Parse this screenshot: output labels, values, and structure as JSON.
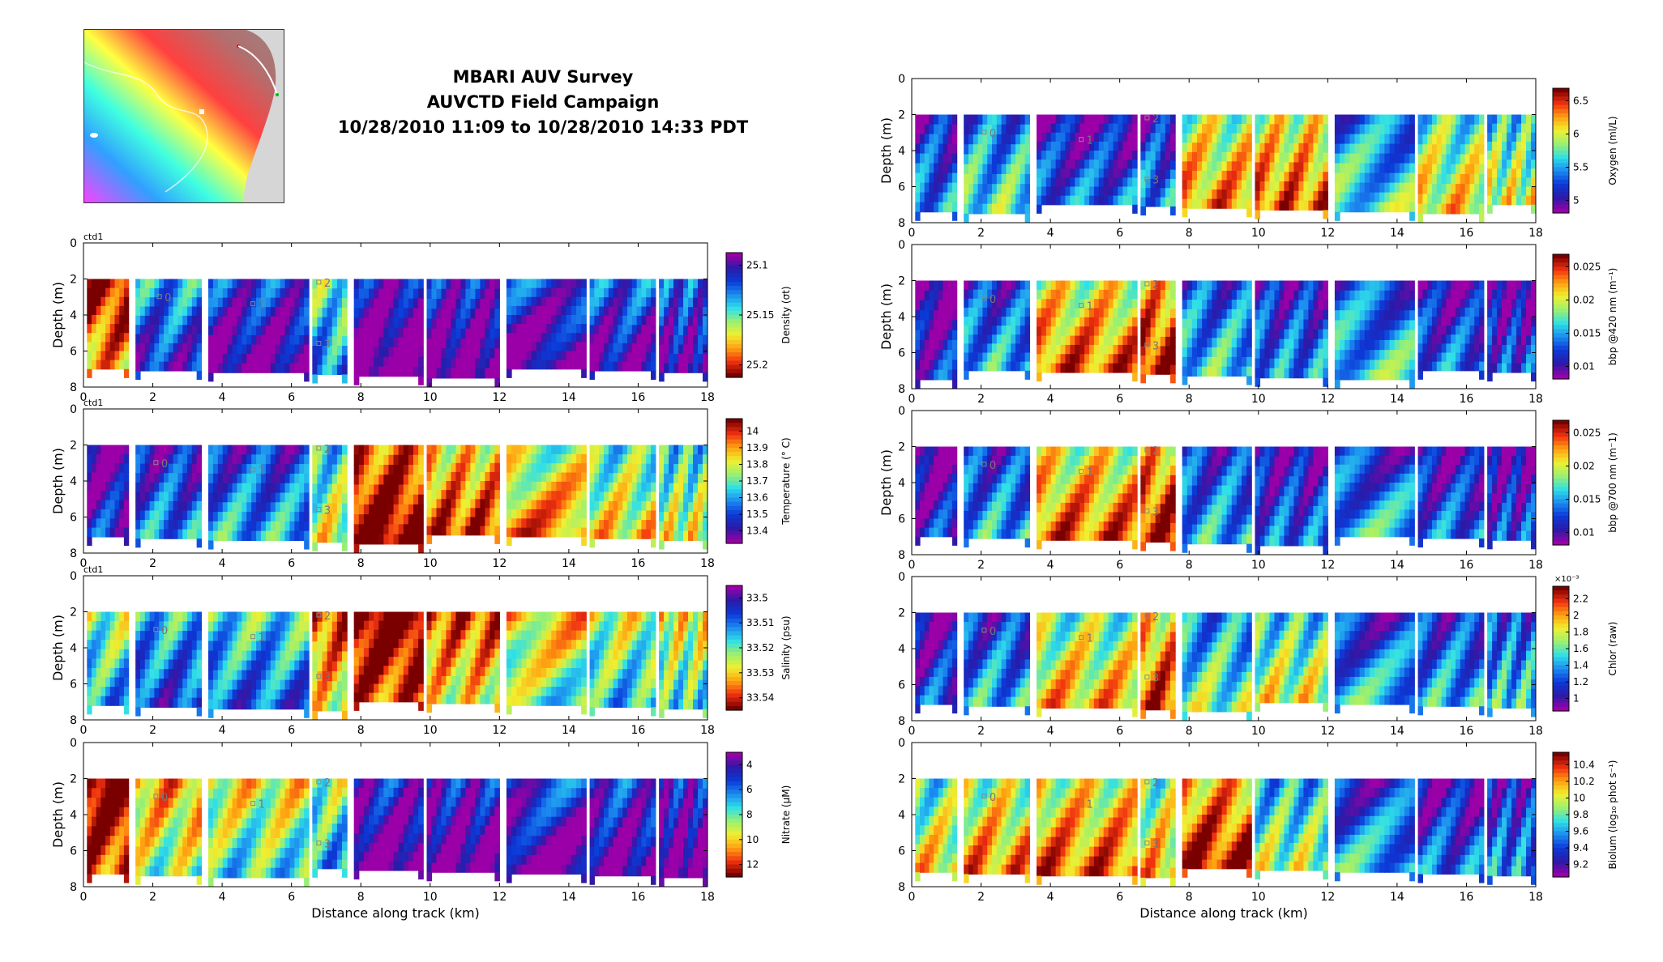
{
  "title": {
    "line1": "MBARI AUV Survey",
    "line2": "AUVCTD Field Campaign",
    "line3": "10/28/2010 11:09 to 10/28/2010 14:33 PDT"
  },
  "colors": {
    "jet": [
      "#00007f",
      "#0000ff",
      "#007fff",
      "#00ffff",
      "#7fff7f",
      "#ffff00",
      "#ff7f00",
      "#ff0000",
      "#7f0000"
    ],
    "purple_jet": [
      "#9b00a8",
      "#2a1aa8",
      "#0b3ad8",
      "#1c8cf0",
      "#2fe0e8",
      "#9cf070",
      "#f0f030",
      "#ffa010",
      "#f03010",
      "#7a0000"
    ],
    "background_panel": "#ffffff",
    "inset_land": "#d8d8d8",
    "inset_sea": "#c8a0a0"
  },
  "chart_data": [
    {
      "id": "density",
      "type": "heatmap",
      "col": "left",
      "row": 0,
      "ctd_label": "ctd1",
      "colorbar_label": "Density (σt)",
      "xlabel": "",
      "ylabel": "Depth (m)",
      "xlim": [
        0,
        18
      ],
      "ylim": [
        8,
        0
      ],
      "xticks": [
        "0",
        "2",
        "4",
        "6",
        "8",
        "10",
        "12",
        "14",
        "16",
        "18"
      ],
      "yticks": [
        "0",
        "2",
        "4",
        "6",
        "8"
      ],
      "cbar_ticks": [
        "25.1",
        "25.15",
        "25.2"
      ],
      "colormap": "purple_jet",
      "reverse": true,
      "markers": [
        {
          "label": "0",
          "x": 2.2,
          "y": 3.0
        },
        {
          "label": "1",
          "x": 4.9,
          "y": 3.4
        },
        {
          "label": "2",
          "x": 6.8,
          "y": 2.2
        },
        {
          "label": "3",
          "x": 6.8,
          "y": 5.6
        }
      ],
      "values_by_section": [
        0.85,
        0.25,
        0.1,
        0.4,
        0.0,
        0.05,
        0.1,
        0.15,
        0.15,
        0.2
      ]
    },
    {
      "id": "temperature",
      "type": "heatmap",
      "col": "left",
      "row": 1,
      "ctd_label": "ctd1",
      "colorbar_label": "Temperature (° C)",
      "xlabel": "",
      "ylabel": "Depth (m)",
      "xlim": [
        0,
        18
      ],
      "ylim": [
        8,
        0
      ],
      "xticks": [
        "0",
        "2",
        "4",
        "6",
        "8",
        "10",
        "12",
        "14",
        "16",
        "18"
      ],
      "yticks": [
        "0",
        "2",
        "4",
        "6",
        "8"
      ],
      "cbar_ticks": [
        "13.4",
        "13.5",
        "13.6",
        "13.7",
        "13.8",
        "13.9",
        "14"
      ],
      "colormap": "purple_jet",
      "reverse": false,
      "markers": [
        {
          "label": "0",
          "x": 2.1,
          "y": 3.0
        },
        {
          "label": "1",
          "x": 4.9,
          "y": 3.4
        },
        {
          "label": "2",
          "x": 6.8,
          "y": 2.2
        },
        {
          "label": "3",
          "x": 6.8,
          "y": 5.6
        }
      ],
      "values_by_section": [
        0.1,
        0.25,
        0.3,
        0.55,
        0.95,
        0.8,
        0.7,
        0.6,
        0.55,
        0.5
      ]
    },
    {
      "id": "salinity",
      "type": "heatmap",
      "col": "left",
      "row": 2,
      "ctd_label": "ctd1",
      "colorbar_label": "Salinity (psu)",
      "xlabel": "",
      "ylabel": "Depth (m)",
      "xlim": [
        0,
        18
      ],
      "ylim": [
        8,
        0
      ],
      "xticks": [
        "0",
        "2",
        "4",
        "6",
        "8",
        "10",
        "12",
        "14",
        "16",
        "18"
      ],
      "yticks": [
        "0",
        "2",
        "4",
        "6",
        "8"
      ],
      "cbar_ticks": [
        "33.5",
        "33.51",
        "33.52",
        "33.53",
        "33.54"
      ],
      "colormap": "purple_jet",
      "reverse": true,
      "markers": [
        {
          "label": "0",
          "x": 2.1,
          "y": 3.0
        },
        {
          "label": "1",
          "x": 4.9,
          "y": 3.4
        },
        {
          "label": "2",
          "x": 6.8,
          "y": 2.2
        },
        {
          "label": "3",
          "x": 6.8,
          "y": 5.6
        }
      ],
      "values_by_section": [
        0.45,
        0.3,
        0.35,
        0.75,
        0.95,
        0.75,
        0.6,
        0.5,
        0.55,
        0.6
      ]
    },
    {
      "id": "nitrate",
      "type": "heatmap",
      "col": "left",
      "row": 3,
      "ctd_label": "",
      "colorbar_label": "Nitrate (μM)",
      "xlabel": "Distance along track (km)",
      "ylabel": "Depth (m)",
      "xlim": [
        0,
        18
      ],
      "ylim": [
        8,
        0
      ],
      "xticks": [
        "0",
        "2",
        "4",
        "6",
        "8",
        "10",
        "12",
        "14",
        "16",
        "18"
      ],
      "yticks": [
        "0",
        "2",
        "4",
        "6",
        "8"
      ],
      "cbar_ticks": [
        "4",
        "6",
        "8",
        "10",
        "12"
      ],
      "colormap": "purple_jet",
      "reverse": true,
      "markers": [
        {
          "label": "0",
          "x": 2.1,
          "y": 3.0
        },
        {
          "label": "1",
          "x": 4.9,
          "y": 3.4
        },
        {
          "label": "2",
          "x": 6.8,
          "y": 2.2
        },
        {
          "label": "3",
          "x": 6.8,
          "y": 5.6
        }
      ],
      "values_by_section": [
        0.95,
        0.65,
        0.55,
        0.45,
        0.05,
        0.05,
        0.1,
        0.1,
        0.05,
        0.05
      ]
    },
    {
      "id": "oxygen",
      "type": "heatmap",
      "col": "right",
      "row": 0,
      "ctd_label": "",
      "colorbar_label": "Oxygen (ml/L)",
      "xlabel": "",
      "ylabel": "Depth (m)",
      "xlim": [
        0,
        18
      ],
      "ylim": [
        8,
        0
      ],
      "xticks": [
        "0",
        "2",
        "4",
        "6",
        "8",
        "10",
        "12",
        "14",
        "16",
        "18"
      ],
      "yticks": [
        "0",
        "2",
        "4",
        "6",
        "8"
      ],
      "cbar_ticks": [
        "5",
        "5.5",
        "6",
        "6.5"
      ],
      "colormap": "purple_jet",
      "reverse": false,
      "markers": [
        {
          "label": "0",
          "x": 2.1,
          "y": 3.0
        },
        {
          "label": "1",
          "x": 4.9,
          "y": 3.4
        },
        {
          "label": "2",
          "x": 6.8,
          "y": 2.2
        },
        {
          "label": "3",
          "x": 6.8,
          "y": 5.6
        }
      ],
      "values_by_section": [
        0.25,
        0.4,
        0.2,
        0.25,
        0.7,
        0.75,
        0.4,
        0.6,
        0.55,
        0.85
      ]
    },
    {
      "id": "bbp420",
      "type": "heatmap",
      "col": "right",
      "row": 1,
      "ctd_label": "",
      "colorbar_label": "bbp @420 nm (m⁻¹)",
      "xlabel": "",
      "ylabel": "Depth (m)",
      "xlim": [
        0,
        18
      ],
      "ylim": [
        8,
        0
      ],
      "xticks": [
        "0",
        "2",
        "4",
        "6",
        "8",
        "10",
        "12",
        "14",
        "16",
        "18"
      ],
      "yticks": [
        "0",
        "2",
        "4",
        "6",
        "8"
      ],
      "cbar_ticks": [
        "0.01",
        "0.015",
        "0.02",
        "0.025"
      ],
      "colormap": "purple_jet",
      "reverse": false,
      "markers": [
        {
          "label": "0",
          "x": 2.1,
          "y": 3.0
        },
        {
          "label": "1",
          "x": 4.9,
          "y": 3.4
        },
        {
          "label": "2",
          "x": 6.8,
          "y": 2.2
        },
        {
          "label": "3",
          "x": 6.8,
          "y": 5.6
        }
      ],
      "values_by_section": [
        0.1,
        0.3,
        0.75,
        0.85,
        0.35,
        0.25,
        0.35,
        0.2,
        0.15,
        0.1
      ]
    },
    {
      "id": "bbp700",
      "type": "heatmap",
      "col": "right",
      "row": 2,
      "ctd_label": "",
      "colorbar_label": "bbp @700 nm (m⁻1)",
      "xlabel": "",
      "ylabel": "Depth (m)",
      "xlim": [
        0,
        18
      ],
      "ylim": [
        8,
        0
      ],
      "xticks": [
        "0",
        "2",
        "4",
        "6",
        "8",
        "10",
        "12",
        "14",
        "16",
        "18"
      ],
      "yticks": [
        "0",
        "2",
        "4",
        "6",
        "8"
      ],
      "cbar_ticks": [
        "0.01",
        "0.015",
        "0.02",
        "0.025"
      ],
      "colormap": "purple_jet",
      "reverse": false,
      "markers": [
        {
          "label": "0",
          "x": 2.1,
          "y": 3.0
        },
        {
          "label": "1",
          "x": 4.9,
          "y": 3.4
        },
        {
          "label": "2",
          "x": 6.8,
          "y": 2.2
        },
        {
          "label": "3",
          "x": 6.8,
          "y": 5.6
        }
      ],
      "values_by_section": [
        0.1,
        0.3,
        0.75,
        0.85,
        0.3,
        0.2,
        0.3,
        0.2,
        0.15,
        0.1
      ]
    },
    {
      "id": "chlor",
      "type": "heatmap",
      "col": "right",
      "row": 3,
      "ctd_label": "",
      "colorbar_label": "Chlor (raw)",
      "xlabel": "",
      "ylabel": "",
      "xlim": [
        0,
        18
      ],
      "ylim": [
        8,
        0
      ],
      "xticks": [
        "0",
        "2",
        "4",
        "6",
        "8",
        "10",
        "12",
        "14",
        "16",
        "18"
      ],
      "yticks": [
        "0",
        "2",
        "4",
        "6",
        "8"
      ],
      "cbar_ticks": [
        "1",
        "1.2",
        "1.4",
        "1.6",
        "1.8",
        "2",
        "2.2"
      ],
      "cbar_exponent": "×10⁻³",
      "colormap": "purple_jet",
      "reverse": false,
      "markers": [
        {
          "label": "0",
          "x": 2.1,
          "y": 3.0
        },
        {
          "label": "1",
          "x": 4.9,
          "y": 3.4
        },
        {
          "label": "2",
          "x": 6.8,
          "y": 2.2
        },
        {
          "label": "3",
          "x": 6.8,
          "y": 5.6
        }
      ],
      "values_by_section": [
        0.15,
        0.3,
        0.65,
        0.8,
        0.45,
        0.55,
        0.3,
        0.3,
        0.35,
        0.3
      ]
    },
    {
      "id": "biolum",
      "type": "heatmap",
      "col": "right",
      "row": 4,
      "ctd_label": "",
      "colorbar_label": "Biolum (log₁₀ phot s⁻¹)",
      "xlabel": "Distance along track (km)",
      "ylabel": "",
      "xlim": [
        0,
        18
      ],
      "ylim": [
        8,
        0
      ],
      "xticks": [
        "0",
        "2",
        "4",
        "6",
        "8",
        "10",
        "12",
        "14",
        "16",
        "18"
      ],
      "yticks": [
        "0",
        "2",
        "4",
        "6",
        "8"
      ],
      "cbar_ticks": [
        "9.2",
        "9.4",
        "9.6",
        "9.8",
        "10",
        "10.2",
        "10.4"
      ],
      "colormap": "purple_jet",
      "reverse": false,
      "markers": [
        {
          "label": "0",
          "x": 2.1,
          "y": 3.0
        },
        {
          "label": "1",
          "x": 4.9,
          "y": 3.4
        },
        {
          "label": "2",
          "x": 6.8,
          "y": 2.2
        },
        {
          "label": "3",
          "x": 6.8,
          "y": 5.6
        }
      ],
      "values_by_section": [
        0.6,
        0.7,
        0.75,
        0.65,
        0.85,
        0.5,
        0.3,
        0.2,
        0.25,
        0.2
      ]
    }
  ],
  "sections_km": [
    [
      0.1,
      1.3
    ],
    [
      1.5,
      3.4
    ],
    [
      3.6,
      6.5
    ],
    [
      6.6,
      7.6
    ],
    [
      7.8,
      9.8
    ],
    [
      9.9,
      12.0
    ],
    [
      12.2,
      14.5
    ],
    [
      14.6,
      16.5
    ],
    [
      16.6,
      18.0
    ]
  ]
}
